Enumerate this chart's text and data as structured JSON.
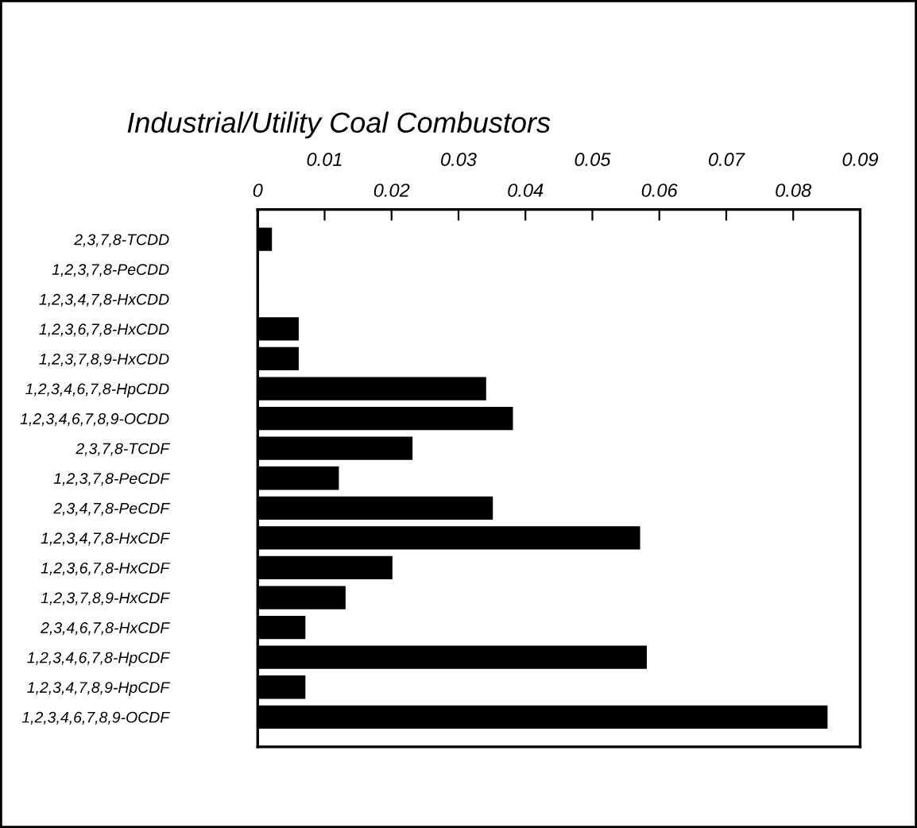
{
  "chart_data": {
    "type": "bar",
    "orientation": "horizontal",
    "title": "Industrial/Utility Coal Combustors",
    "categories": [
      "2,3,7,8-TCDD",
      "1,2,3,7,8-PeCDD",
      "1,2,3,4,7,8-HxCDD",
      "1,2,3,6,7,8-HxCDD",
      "1,2,3,7,8,9-HxCDD",
      "1,2,3,4,6,7,8-HpCDD",
      "1,2,3,4,6,7,8,9-OCDD",
      "2,3,7,8-TCDF",
      "1,2,3,7,8-PeCDF",
      "2,3,4,7,8-PeCDF",
      "1,2,3,4,7,8-HxCDF",
      "1,2,3,6,7,8-HxCDF",
      "1,2,3,7,8,9-HxCDF",
      "2,3,4,6,7,8-HxCDF",
      "1,2,3,4,6,7,8-HpCDF",
      "1,2,3,4,7,8,9-HpCDF",
      "1,2,3,4,6,7,8,9-OCDF"
    ],
    "values": [
      0.002,
      0,
      0,
      0.006,
      0.006,
      0.034,
      0.038,
      0.023,
      0.012,
      0.035,
      0.057,
      0.02,
      0.013,
      0.007,
      0.058,
      0.007,
      0.085
    ],
    "color": "#000000",
    "xlim": [
      0,
      0.09
    ],
    "xticks": [
      0,
      {
        "value": 0.01,
        "label": null
      },
      0.02,
      {
        "value": 0.03,
        "label": null
      },
      0.04,
      {
        "value": 0.05,
        "label": null
      },
      0.06,
      {
        "value": 0.07,
        "label": null
      },
      0.08,
      {
        "value": 0.09,
        "label": null
      }
    ],
    "x2lim": [
      0,
      0.09
    ],
    "x2ticks": [
      0.01,
      0.03,
      0.05,
      0.07,
      0.09
    ],
    "grid": false,
    "legend": false
  }
}
